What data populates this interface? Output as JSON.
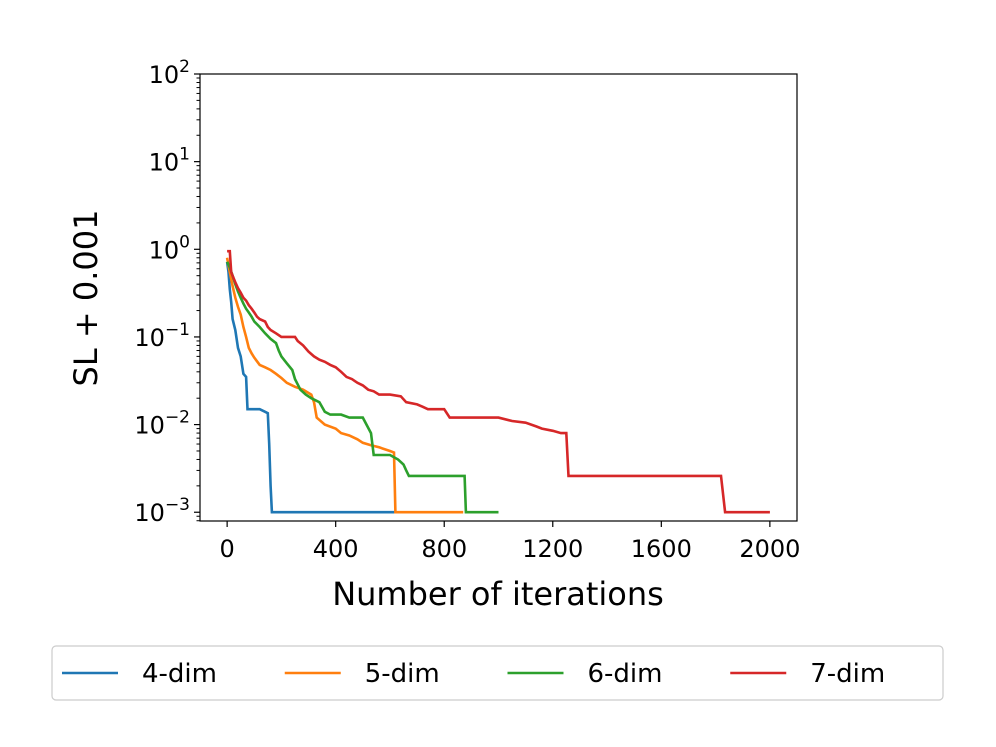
{
  "chart_data": {
    "type": "line",
    "title": "",
    "xlabel": "Number of iterations",
    "ylabel": "SL + 0.001",
    "xlim": [
      -100,
      2100
    ],
    "ylim_log10": [
      -3.1,
      2
    ],
    "yscale": "log",
    "x_ticks": [
      0,
      400,
      800,
      1200,
      1600,
      2000
    ],
    "x_tick_labels": [
      "0",
      "400",
      "800",
      "1200",
      "1600",
      "2000"
    ],
    "y_ticks_log10": [
      -3,
      -2,
      -1,
      0,
      1,
      2
    ],
    "y_tick_base": "10",
    "y_tick_exponents": [
      "−3",
      "−2",
      "−1",
      "0",
      "1",
      "2"
    ],
    "legend_position": "below",
    "grid": false,
    "series": [
      {
        "name": "4-dim",
        "color": "#1f77b4",
        "points": [
          [
            0,
            0.72
          ],
          [
            5,
            0.55
          ],
          [
            10,
            0.35
          ],
          [
            15,
            0.25
          ],
          [
            20,
            0.16
          ],
          [
            30,
            0.12
          ],
          [
            40,
            0.075
          ],
          [
            50,
            0.06
          ],
          [
            60,
            0.038
          ],
          [
            70,
            0.035
          ],
          [
            75,
            0.015
          ],
          [
            120,
            0.015
          ],
          [
            140,
            0.014
          ],
          [
            150,
            0.0135
          ],
          [
            155,
            0.006
          ],
          [
            160,
            0.002
          ],
          [
            165,
            0.001
          ],
          [
            620,
            0.001
          ]
        ]
      },
      {
        "name": "5-dim",
        "color": "#ff7f0e",
        "points": [
          [
            0,
            0.8
          ],
          [
            10,
            0.55
          ],
          [
            20,
            0.38
          ],
          [
            30,
            0.28
          ],
          [
            40,
            0.22
          ],
          [
            50,
            0.18
          ],
          [
            60,
            0.13
          ],
          [
            70,
            0.1
          ],
          [
            80,
            0.075
          ],
          [
            90,
            0.065
          ],
          [
            100,
            0.058
          ],
          [
            120,
            0.048
          ],
          [
            140,
            0.045
          ],
          [
            160,
            0.042
          ],
          [
            180,
            0.038
          ],
          [
            200,
            0.034
          ],
          [
            220,
            0.03
          ],
          [
            250,
            0.027
          ],
          [
            280,
            0.025
          ],
          [
            310,
            0.022
          ],
          [
            320,
            0.018
          ],
          [
            330,
            0.012
          ],
          [
            360,
            0.01
          ],
          [
            400,
            0.009
          ],
          [
            420,
            0.008
          ],
          [
            450,
            0.0075
          ],
          [
            480,
            0.0068
          ],
          [
            500,
            0.0062
          ],
          [
            530,
            0.0058
          ],
          [
            560,
            0.0055
          ],
          [
            600,
            0.005
          ],
          [
            615,
            0.0048
          ],
          [
            620,
            0.001
          ],
          [
            870,
            0.001
          ]
        ]
      },
      {
        "name": "6-dim",
        "color": "#2ca02c",
        "points": [
          [
            0,
            0.72
          ],
          [
            10,
            0.62
          ],
          [
            20,
            0.5
          ],
          [
            30,
            0.4
          ],
          [
            40,
            0.33
          ],
          [
            50,
            0.28
          ],
          [
            60,
            0.24
          ],
          [
            70,
            0.21
          ],
          [
            80,
            0.19
          ],
          [
            90,
            0.17
          ],
          [
            100,
            0.15
          ],
          [
            120,
            0.13
          ],
          [
            140,
            0.11
          ],
          [
            160,
            0.095
          ],
          [
            180,
            0.085
          ],
          [
            190,
            0.07
          ],
          [
            200,
            0.06
          ],
          [
            220,
            0.05
          ],
          [
            240,
            0.042
          ],
          [
            250,
            0.033
          ],
          [
            270,
            0.025
          ],
          [
            290,
            0.022
          ],
          [
            310,
            0.02
          ],
          [
            340,
            0.018
          ],
          [
            360,
            0.014
          ],
          [
            380,
            0.013
          ],
          [
            420,
            0.013
          ],
          [
            450,
            0.012
          ],
          [
            500,
            0.012
          ],
          [
            530,
            0.008
          ],
          [
            540,
            0.0045
          ],
          [
            560,
            0.0045
          ],
          [
            600,
            0.0045
          ],
          [
            630,
            0.004
          ],
          [
            650,
            0.0035
          ],
          [
            660,
            0.003
          ],
          [
            670,
            0.0026
          ],
          [
            875,
            0.0026
          ],
          [
            880,
            0.001
          ],
          [
            1000,
            0.001
          ]
        ]
      },
      {
        "name": "7-dim",
        "color": "#d62728",
        "points": [
          [
            0,
            0.95
          ],
          [
            10,
            0.95
          ],
          [
            15,
            0.55
          ],
          [
            20,
            0.5
          ],
          [
            30,
            0.42
          ],
          [
            40,
            0.36
          ],
          [
            50,
            0.32
          ],
          [
            60,
            0.28
          ],
          [
            70,
            0.26
          ],
          [
            80,
            0.23
          ],
          [
            90,
            0.21
          ],
          [
            100,
            0.19
          ],
          [
            110,
            0.17
          ],
          [
            120,
            0.16
          ],
          [
            140,
            0.15
          ],
          [
            150,
            0.13
          ],
          [
            160,
            0.12
          ],
          [
            180,
            0.11
          ],
          [
            200,
            0.1
          ],
          [
            250,
            0.1
          ],
          [
            260,
            0.09
          ],
          [
            280,
            0.08
          ],
          [
            300,
            0.068
          ],
          [
            320,
            0.06
          ],
          [
            340,
            0.055
          ],
          [
            360,
            0.052
          ],
          [
            380,
            0.048
          ],
          [
            400,
            0.045
          ],
          [
            420,
            0.04
          ],
          [
            440,
            0.035
          ],
          [
            460,
            0.033
          ],
          [
            480,
            0.03
          ],
          [
            500,
            0.028
          ],
          [
            520,
            0.025
          ],
          [
            540,
            0.024
          ],
          [
            560,
            0.022
          ],
          [
            600,
            0.022
          ],
          [
            640,
            0.021
          ],
          [
            660,
            0.018
          ],
          [
            700,
            0.017
          ],
          [
            720,
            0.016
          ],
          [
            740,
            0.015
          ],
          [
            800,
            0.015
          ],
          [
            820,
            0.012
          ],
          [
            900,
            0.012
          ],
          [
            1000,
            0.012
          ],
          [
            1050,
            0.011
          ],
          [
            1100,
            0.0105
          ],
          [
            1140,
            0.0095
          ],
          [
            1160,
            0.009
          ],
          [
            1200,
            0.0085
          ],
          [
            1230,
            0.008
          ],
          [
            1250,
            0.008
          ],
          [
            1258,
            0.0026
          ],
          [
            1820,
            0.0026
          ],
          [
            1835,
            0.001
          ],
          [
            2000,
            0.001
          ]
        ]
      }
    ]
  }
}
